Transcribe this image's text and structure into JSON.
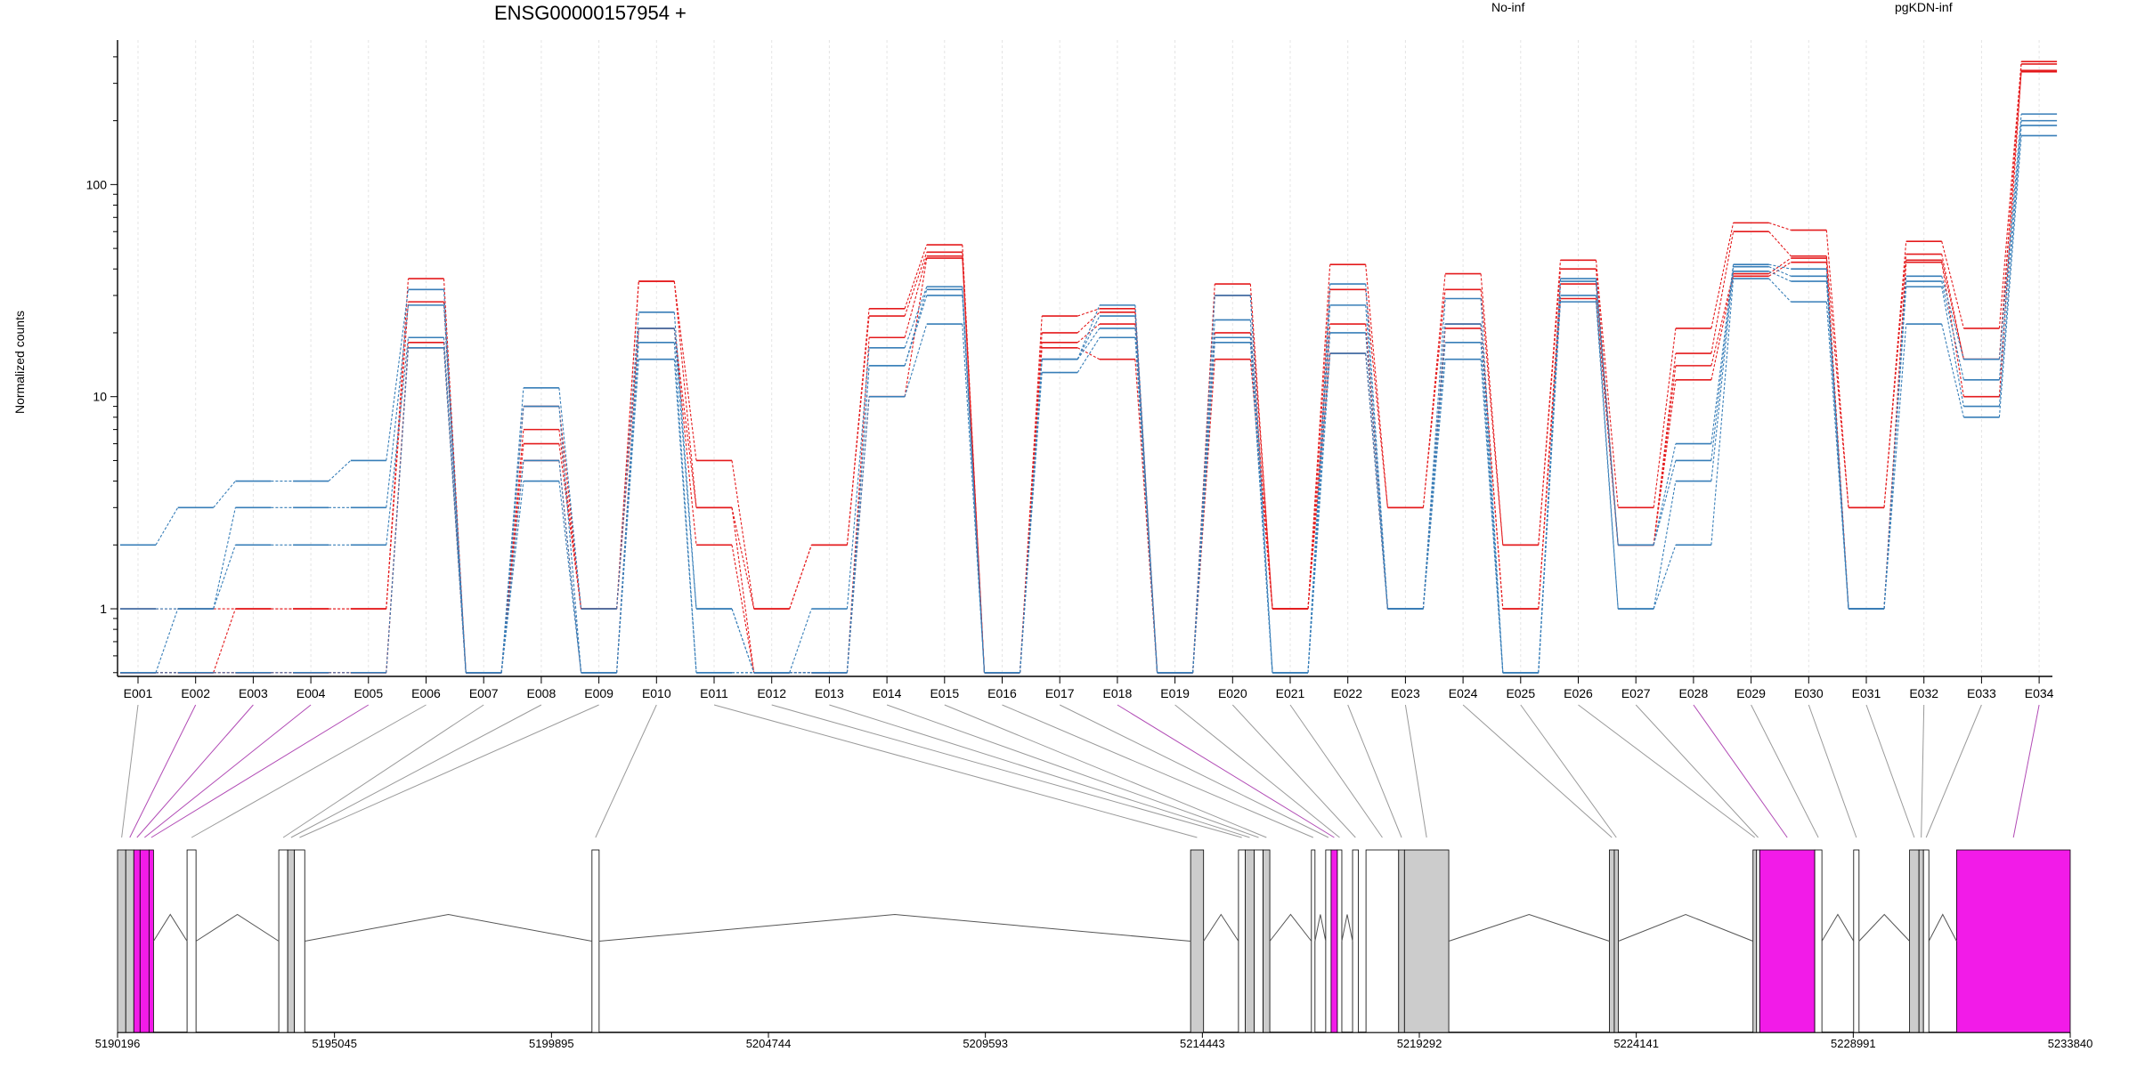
{
  "chart_data": {
    "type": "line",
    "title": "ENSG00000157954 +",
    "ylabel": "Normalized counts",
    "yscale": "log",
    "ylim": [
      0.48,
      480
    ],
    "yticks": [
      1,
      10,
      100
    ],
    "ytick_labels": [
      "1",
      "10",
      "100"
    ],
    "grid": "vertical dotted lines at each exon",
    "legend_placement": "top",
    "categories": [
      "E001",
      "E002",
      "E003",
      "E004",
      "E005",
      "E006",
      "E007",
      "E008",
      "E009",
      "E010",
      "E011",
      "E012",
      "E013",
      "E014",
      "E015",
      "E016",
      "E017",
      "E018",
      "E019",
      "E020",
      "E021",
      "E022",
      "E023",
      "E024",
      "E025",
      "E026",
      "E027",
      "E028",
      "E029",
      "E030",
      "E031",
      "E032",
      "E033",
      "E034"
    ],
    "series": [
      {
        "name": "No-inf",
        "color": "#e41a1c",
        "values": [
          1.0,
          1.0,
          1.0,
          1.0,
          1.0,
          36,
          0.5,
          9,
          1.0,
          35,
          5.0,
          1.0,
          2.0,
          26,
          52,
          0.5,
          24,
          26,
          0.5,
          34,
          1.0,
          42,
          3.0,
          38,
          2.0,
          44,
          3.0,
          21,
          66,
          61,
          3.0,
          54,
          21,
          380
        ]
      },
      {
        "name": "No-inf",
        "color": "#e41a1c",
        "values": [
          0.5,
          0.5,
          1.0,
          1.0,
          1.0,
          28,
          0.5,
          7,
          1.0,
          35,
          3.0,
          1.0,
          2.0,
          24,
          48,
          0.5,
          20,
          25,
          0.5,
          30,
          1.0,
          32,
          3.0,
          32,
          2.0,
          40,
          2.0,
          16,
          60,
          46,
          3.0,
          47,
          15,
          370
        ]
      },
      {
        "name": "No-inf",
        "color": "#e41a1c",
        "values": [
          0.5,
          0.5,
          0.5,
          0.5,
          0.5,
          18,
          0.5,
          6,
          1.0,
          21,
          3.0,
          0.5,
          0.5,
          19,
          46,
          0.5,
          18,
          22,
          0.5,
          20,
          1.0,
          22,
          1.0,
          22,
          1.0,
          34,
          2.0,
          14,
          38,
          45,
          1.0,
          44,
          15,
          340
        ]
      },
      {
        "name": "No-inf",
        "color": "#e41a1c",
        "values": [
          0.5,
          0.5,
          0.5,
          0.5,
          0.5,
          17,
          0.5,
          5,
          0.5,
          21,
          2.0,
          0.5,
          0.5,
          10,
          45,
          0.5,
          17,
          15,
          0.5,
          15,
          1.0,
          16,
          1.0,
          21,
          1.0,
          29,
          2.0,
          12,
          37,
          43,
          1.0,
          43,
          10,
          345
        ]
      },
      {
        "name": "pgKDN-inf",
        "color": "#377eb8",
        "values": [
          2.0,
          3.0,
          4.0,
          4.0,
          5.0,
          32,
          0.5,
          11,
          1.0,
          25,
          1.0,
          0.5,
          1.0,
          17,
          33,
          0.5,
          15,
          27,
          0.5,
          30,
          0.5,
          34,
          1.0,
          29,
          0.5,
          36,
          2.0,
          6,
          42,
          40,
          1.0,
          37,
          15,
          215
        ]
      },
      {
        "name": "pgKDN-inf",
        "color": "#377eb8",
        "values": [
          1.0,
          1.0,
          3.0,
          3.0,
          3.0,
          27,
          0.5,
          9,
          0.5,
          21,
          1.0,
          0.5,
          0.5,
          14,
          32,
          0.5,
          15,
          24,
          0.5,
          23,
          0.5,
          27,
          1.0,
          22,
          0.5,
          35,
          2.0,
          5,
          41,
          37,
          1.0,
          35,
          12,
          200
        ]
      },
      {
        "name": "pgKDN-inf",
        "color": "#377eb8",
        "values": [
          0.5,
          1.0,
          2.0,
          2.0,
          2.0,
          19,
          0.5,
          5,
          0.5,
          18,
          0.5,
          0.5,
          0.5,
          14,
          30,
          0.5,
          15,
          21,
          0.5,
          19,
          0.5,
          20,
          1.0,
          18,
          0.5,
          30,
          1.0,
          4,
          39,
          35,
          1.0,
          33,
          9,
          190
        ]
      },
      {
        "name": "pgKDN-inf",
        "color": "#377eb8",
        "values": [
          0.5,
          0.5,
          0.5,
          0.5,
          0.5,
          17,
          0.5,
          4,
          0.5,
          15,
          0.5,
          0.5,
          0.5,
          10,
          22,
          0.5,
          13,
          19,
          0.5,
          18,
          0.5,
          16,
          1.0,
          15,
          0.5,
          28,
          1.0,
          2,
          36,
          28,
          1.0,
          22,
          8,
          170
        ]
      }
    ],
    "gene_model": {
      "xlim": [
        5190196,
        5233840
      ],
      "coord_ticks": [
        5190196,
        5195045,
        5199895,
        5204744,
        5209593,
        5214443,
        5219292,
        5224141,
        5228991,
        5233840
      ],
      "coord_tick_labels": [
        "5190196",
        "5195045",
        "5199895",
        "5204744",
        "5209593",
        "5214443",
        "5219292",
        "5224141",
        "5228991",
        "5233840"
      ],
      "highlighted_exons": [
        "E002",
        "E003",
        "E004",
        "E005",
        "E018",
        "E028",
        "E034"
      ],
      "highlight_color": "#f21be8",
      "counted_fill": "#cccccc"
    }
  }
}
